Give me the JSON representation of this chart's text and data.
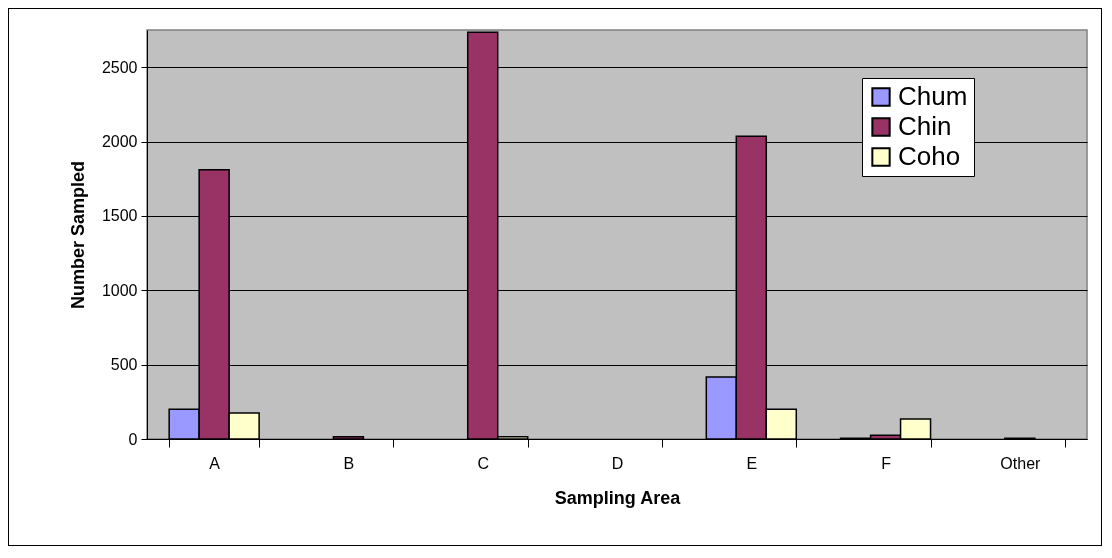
{
  "chart_data": {
    "type": "bar",
    "xlabel": "Sampling Area",
    "ylabel": "Number Sampled",
    "categories": [
      "A",
      "B",
      "C",
      "D",
      "E",
      "F",
      "Other"
    ],
    "series": [
      {
        "name": "Chum",
        "color": "#9999ff",
        "values": [
          200,
          null,
          null,
          null,
          417,
          5,
          null
        ]
      },
      {
        "name": "Chin",
        "color": "#993366",
        "values": [
          1810,
          15,
          2735,
          null,
          2036,
          25,
          5
        ]
      },
      {
        "name": "Coho",
        "color": "#ffffcc",
        "values": [
          175,
          null,
          15,
          null,
          200,
          135,
          null
        ]
      }
    ],
    "ylim": [
      0,
      2750
    ],
    "yticks": [
      0,
      500,
      1000,
      1500,
      2000,
      2500
    ],
    "grid": "y",
    "legend": "top right"
  }
}
